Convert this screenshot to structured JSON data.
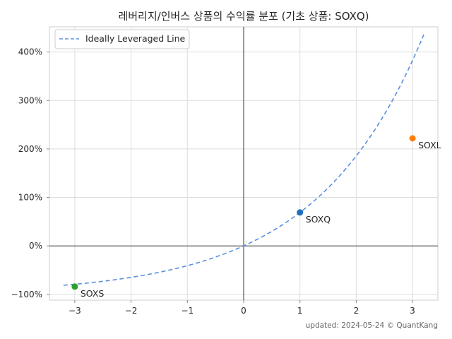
{
  "chart_data": {
    "type": "scatter",
    "title": "레버리지/인버스 상품의 수익률 분포 (기초 상품: SOXQ)",
    "xlabel": "",
    "ylabel": "",
    "xlim": [
      -3.45,
      3.45
    ],
    "ylim": [
      -112,
      452
    ],
    "x_ticks": [
      -3,
      -2,
      -1,
      0,
      1,
      2,
      3
    ],
    "x_tick_labels": [
      "−3",
      "−2",
      "−1",
      "0",
      "1",
      "2",
      "3"
    ],
    "y_ticks": [
      -100,
      0,
      100,
      200,
      300,
      400
    ],
    "y_tick_labels": [
      "−100%",
      "0%",
      "100%",
      "200%",
      "300%",
      "400%"
    ],
    "grid": true,
    "legend_position": "top-left",
    "line_series": {
      "name": "Ideally Leveraged Line",
      "style": "dashed",
      "color": "#5b8fe0",
      "x_range": [
        -3.2,
        3.2
      ],
      "base_return": 0.69
    },
    "points": [
      {
        "label": "SOXS",
        "x": -3,
        "y": -84,
        "color": "#2ca02c"
      },
      {
        "label": "SOXQ",
        "x": 1,
        "y": 69,
        "color": "#1f6fbf"
      },
      {
        "label": "SOXL",
        "x": 3,
        "y": 222,
        "color": "#ff7f0e"
      }
    ]
  },
  "footer": "updated: 2024-05-24 © QuantKang"
}
